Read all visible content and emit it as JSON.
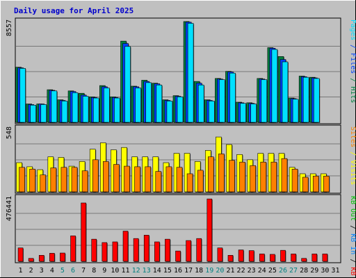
{
  "chart_data": {
    "type": "bar",
    "title": "Daily usage for April 2025",
    "categories": [
      "1",
      "2",
      "3",
      "4",
      "5",
      "6",
      "7",
      "8",
      "9",
      "10",
      "11",
      "12",
      "13",
      "14",
      "15",
      "16",
      "17",
      "18",
      "19",
      "20",
      "21",
      "22",
      "23",
      "24",
      "25",
      "26",
      "27",
      "28",
      "29",
      "30",
      "31"
    ],
    "weekend_days": [
      "5",
      "6",
      "12",
      "13",
      "19",
      "20",
      "26",
      "27"
    ],
    "colors": {
      "background": "#c0c0c0",
      "frame": "#ececec",
      "title": "#0000cc",
      "grid": "#777777",
      "hits": "#008040",
      "files": "#0040ff",
      "pages": "#00e0ff",
      "visits": "#ffff00",
      "sites": "#ff8000",
      "kbin": "#0080ff",
      "kbout": "#00c000",
      "kbf": "#ff0000",
      "weekend_label": "#008080"
    },
    "panels": [
      {
        "max_label": "8557",
        "max": 8557,
        "right_legend": [
          {
            "text": "Hits",
            "color": "#008040"
          },
          {
            "text": "Files",
            "color": "#0040ff"
          },
          {
            "text": "Pages",
            "color": "#00e0ff"
          }
        ],
        "series": [
          {
            "name": "Hits",
            "color": "#008040",
            "values": [
              4650,
              1550,
              1550,
              2750,
              1900,
              2650,
              2450,
              2150,
              3100,
              2150,
              6850,
              3050,
              3550,
              3300,
              1900,
              2250,
              8500,
              3450,
              1900,
              3700,
              4300,
              1700,
              1650,
              3700,
              6300,
              5550,
              2050,
              3900,
              3800,
              0,
              0
            ]
          },
          {
            "name": "Files",
            "color": "#0040ff",
            "values": [
              4600,
              1500,
              1550,
              2700,
              1850,
              2600,
              2300,
              2100,
              3000,
              2100,
              6650,
              3000,
              3450,
              3250,
              1850,
              2200,
              8450,
              3300,
              1850,
              3650,
              4250,
              1650,
              1600,
              3650,
              6250,
              5300,
              2000,
              3850,
              3750,
              0,
              0
            ]
          },
          {
            "name": "Pages",
            "color": "#00e0ff",
            "values": [
              4550,
              1450,
              1500,
              2650,
              1800,
              2500,
              2200,
              2050,
              2900,
              2050,
              6400,
              2900,
              3350,
              3150,
              1800,
              2150,
              8350,
              3150,
              1800,
              3600,
              4150,
              1600,
              1550,
              3600,
              6150,
              5100,
              1950,
              3800,
              3700,
              0,
              0
            ]
          }
        ]
      },
      {
        "max_label": "548",
        "max": 548,
        "right_legend": [
          {
            "text": "Visits",
            "color": "#ffff00"
          },
          {
            "text": "Sites",
            "color": "#ff8000"
          }
        ],
        "series": [
          {
            "name": "Visits",
            "color": "#ffff00",
            "values": [
              250,
              215,
              190,
              300,
              295,
              220,
              260,
              365,
              420,
              360,
              380,
              300,
              300,
              300,
              250,
              330,
              330,
              260,
              355,
              470,
              405,
              320,
              275,
              330,
              330,
              330,
              210,
              155,
              155,
              155,
              0
            ]
          },
          {
            "name": "Sites",
            "color": "#ff8000",
            "values": [
              210,
              195,
              145,
              205,
              210,
              210,
              180,
              275,
              260,
              235,
              220,
              215,
              215,
              175,
              215,
              210,
              155,
              185,
              300,
              325,
              270,
              255,
              225,
              255,
              255,
              285,
              195,
              125,
              135,
              135,
              0
            ]
          }
        ]
      },
      {
        "max_label": "476441",
        "max": 476441,
        "right_legend": [
          {
            "text": "KB F",
            "color": "#ff0000"
          },
          {
            "text": "/",
            "color": "#000000"
          },
          {
            "text": "KB In",
            "color": "#0080ff"
          },
          {
            "text": "/",
            "color": "#000000"
          },
          {
            "text": "KB Out",
            "color": "#00c000"
          }
        ],
        "series": [
          {
            "name": "KB F",
            "color": "#ff0000",
            "values": [
              100000,
              22000,
              45000,
              60000,
              62000,
              190000,
              435000,
              165000,
              140000,
              145000,
              225000,
              170000,
              195000,
              145000,
              165000,
              77000,
              155000,
              170000,
              465000,
              100000,
              45000,
              85000,
              80000,
              55000,
              52000,
              82000,
              55000,
              22000,
              55000,
              55000,
              0
            ]
          }
        ]
      }
    ]
  }
}
